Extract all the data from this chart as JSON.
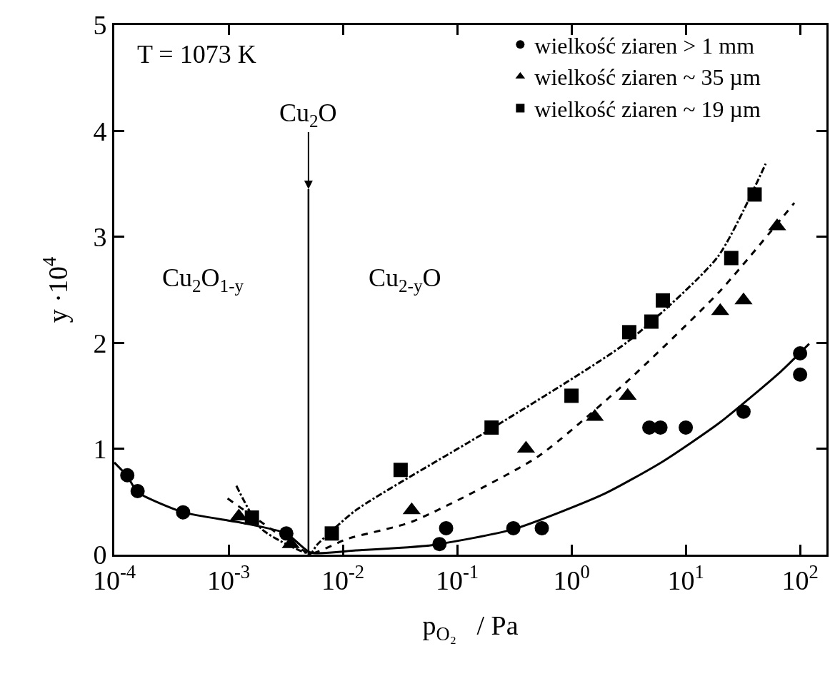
{
  "chart_data": {
    "type": "scatter",
    "xlabel": "p$_{O₂}$   / Pa",
    "ylabel": "y ·10$^{4}$",
    "annotations": [
      "T = 1073 K",
      "Cu$_{2}$O$_{1-y}$",
      "Cu$_{2-y}$O",
      {
        "text": "Cu$_{2}$O",
        "x": 0.005,
        "y": 3.45
      }
    ],
    "ref_lines": [
      {
        "axis": "x",
        "value": 0.005,
        "color": "#000000",
        "line_style": "solid"
      }
    ],
    "series": [
      {
        "name": "wielkość ziaren > 1 mm",
        "color": "#000000",
        "marker": "circle",
        "x": [
          0.00013,
          0.00016,
          0.0004,
          0.0032,
          0.07,
          0.08,
          0.31,
          0.55,
          4.8,
          6,
          10,
          32,
          100,
          100
        ],
        "values": [
          0.75,
          0.6,
          0.4,
          0.2,
          0.1,
          0.25,
          0.25,
          0.25,
          1.2,
          1.2,
          1.2,
          1.35,
          1.9,
          1.7
        ]
      },
      {
        "name": "wielkość ziaren ~ 35 µm",
        "color": "#000000",
        "marker": "triangle",
        "x": [
          0.00123,
          0.0035,
          0.04,
          0.4,
          1.6,
          3.1,
          20,
          32,
          63
        ],
        "values": [
          0.36,
          0.1,
          0.42,
          1.0,
          1.3,
          1.5,
          2.3,
          2.4,
          3.1
        ]
      },
      {
        "name": "wielkość ziaren ~ 19 µm",
        "color": "#000000",
        "marker": "square",
        "x": [
          0.0016,
          0.008,
          0.032,
          0.2,
          1,
          3.2,
          5,
          6.3,
          25,
          40
        ],
        "values": [
          0.35,
          0.2,
          0.8,
          1.2,
          1.5,
          2.1,
          2.2,
          2.4,
          2.8,
          3.4
        ]
      },
      {
        "type": "line",
        "color": "#000000",
        "line_style": "solid",
        "marker": "none",
        "x": [
          0.0001,
          0.00013,
          0.00016,
          0.0004,
          0.00132,
          0.0032,
          0.0052,
          0.013,
          0.06,
          0.31,
          1.9,
          6.3,
          20,
          68,
          120
        ],
        "values": [
          0.87,
          0.74,
          0.59,
          0.4,
          0.3,
          0.2,
          0.02,
          0.04,
          0.09,
          0.24,
          0.57,
          0.88,
          1.25,
          1.73,
          1.99
        ]
      },
      {
        "type": "line",
        "color": "#000000",
        "line_style": "dashed",
        "marker": "none",
        "x": [
          0.00098,
          0.0038,
          0.0052,
          0.011,
          0.04,
          0.5,
          3.1,
          20,
          89
        ],
        "values": [
          0.53,
          0.09,
          0.01,
          0.15,
          0.31,
          0.92,
          1.64,
          2.49,
          3.32
        ]
      },
      {
        "type": "line",
        "color": "#000000",
        "line_style": "dashdot",
        "marker": "none",
        "x": [
          0.00117,
          0.00195,
          0.0052,
          0.0059,
          0.013,
          0.2,
          3.1,
          19,
          50
        ],
        "values": [
          0.65,
          0.24,
          0.01,
          0.09,
          0.42,
          1.19,
          2.01,
          2.81,
          3.69
        ]
      }
    ],
    "log": "x",
    "xlim": [
      0.0001,
      170
    ],
    "ylim": [
      0,
      5
    ],
    "xticks": [
      {
        "value": 0.0001,
        "label": "10$^{-4}$"
      },
      {
        "value": 0.001,
        "label": "10$^{-3}$"
      },
      {
        "value": 0.01,
        "label": "10$^{-2}$"
      },
      {
        "value": 0.1,
        "label": "10$^{-1}$"
      },
      {
        "value": 1,
        "label": "10$^{0}$"
      },
      {
        "value": 10,
        "label": "10$^{1}$"
      },
      {
        "value": 100,
        "label": "10$^{2}$"
      }
    ],
    "yticks": [
      0,
      1,
      2,
      3,
      4,
      5
    ],
    "legend": "top right"
  }
}
